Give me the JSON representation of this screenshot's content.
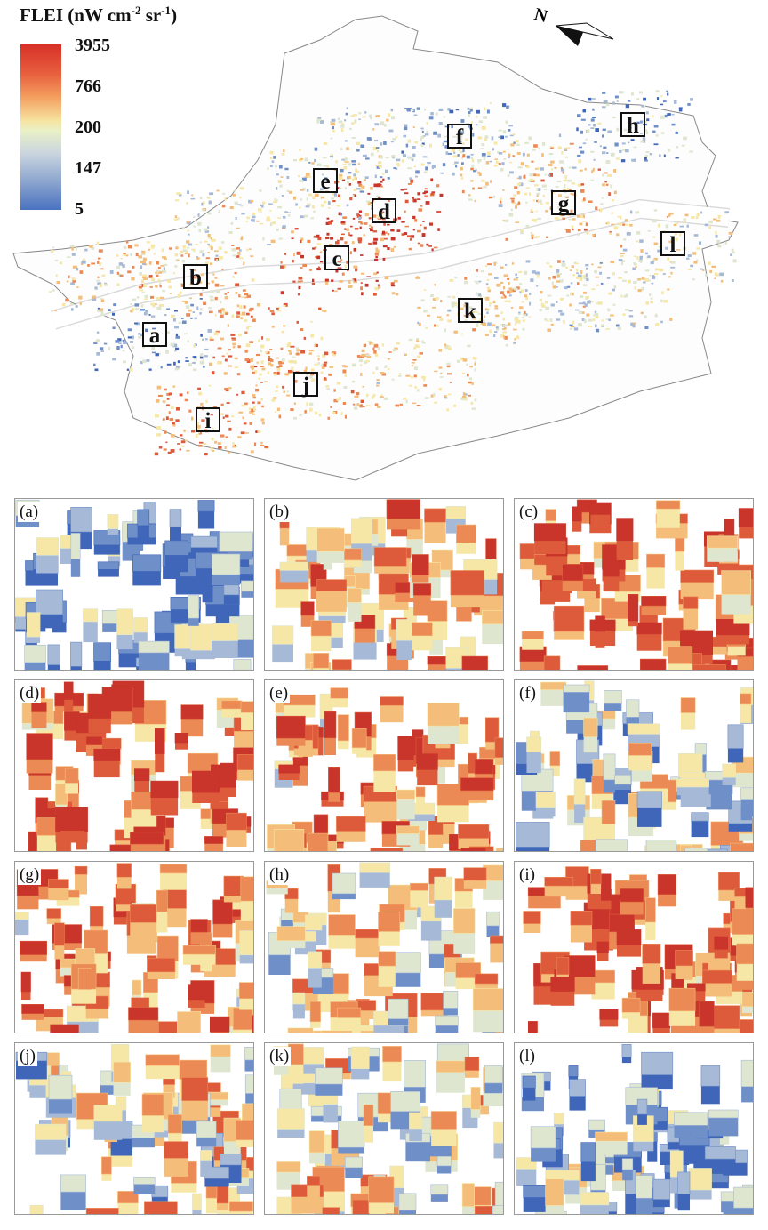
{
  "legend": {
    "title": "FLEI (nW cm",
    "title_sup1": "-2",
    "title_mid": " sr",
    "title_sup2": "-1",
    "title_end": ")",
    "ticks": [
      "3955",
      "766",
      "200",
      "147",
      "5"
    ],
    "colors": {
      "high": "#d73027",
      "mid": "#eef3c8",
      "low": "#4a72c0"
    }
  },
  "north_arrow": {
    "letter": "N",
    "icon": "north-arrow-icon"
  },
  "regions": [
    "a",
    "b",
    "c",
    "d",
    "e",
    "f",
    "g",
    "h",
    "i",
    "j",
    "k",
    "l"
  ],
  "panels": [
    {
      "label": "(a)",
      "tone": "blue"
    },
    {
      "label": "(b)",
      "tone": "mixed-red"
    },
    {
      "label": "(c)",
      "tone": "red"
    },
    {
      "label": "(d)",
      "tone": "red"
    },
    {
      "label": "(e)",
      "tone": "mixed-red"
    },
    {
      "label": "(f)",
      "tone": "blue-ring"
    },
    {
      "label": "(g)",
      "tone": "mixed-red"
    },
    {
      "label": "(h)",
      "tone": "mixed"
    },
    {
      "label": "(i)",
      "tone": "red"
    },
    {
      "label": "(j)",
      "tone": "mixed-yellow"
    },
    {
      "label": "(k)",
      "tone": "mixed-yellow"
    },
    {
      "label": "(l)",
      "tone": "blue"
    }
  ]
}
